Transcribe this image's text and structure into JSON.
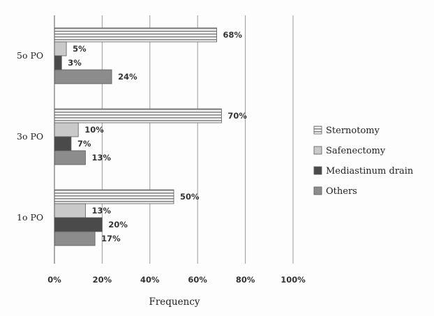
{
  "chart_data": {
    "type": "bar",
    "orientation": "horizontal",
    "title": "",
    "xlabel": "Frequency",
    "ylabel": "",
    "xlim": [
      0,
      100
    ],
    "x_ticks": [
      "0%",
      "20%",
      "40%",
      "60%",
      "80%",
      "100%"
    ],
    "grid": "vertical",
    "legend_position": "right",
    "categories": [
      "5o PO",
      "3o PO",
      "1o PO"
    ],
    "series": [
      {
        "name": "Sternotomy",
        "values": [
          68,
          70,
          50
        ],
        "labels": [
          "68%",
          "70%",
          "50%"
        ],
        "color": "#e8e8e8",
        "pattern": "horizontal-stripes"
      },
      {
        "name": "Safenectomy",
        "values": [
          5,
          10,
          13
        ],
        "labels": [
          "5%",
          "10%",
          "13%"
        ],
        "color": "#c9c9c9"
      },
      {
        "name": "Mediastinum drain",
        "values": [
          3,
          7,
          20
        ],
        "labels": [
          "3%",
          "7%",
          "20%"
        ],
        "color": "#4a4a4a"
      },
      {
        "name": "Others",
        "values": [
          24,
          13,
          17
        ],
        "labels": [
          "24%",
          "13%",
          "17%"
        ],
        "color": "#8c8c8c"
      }
    ]
  }
}
